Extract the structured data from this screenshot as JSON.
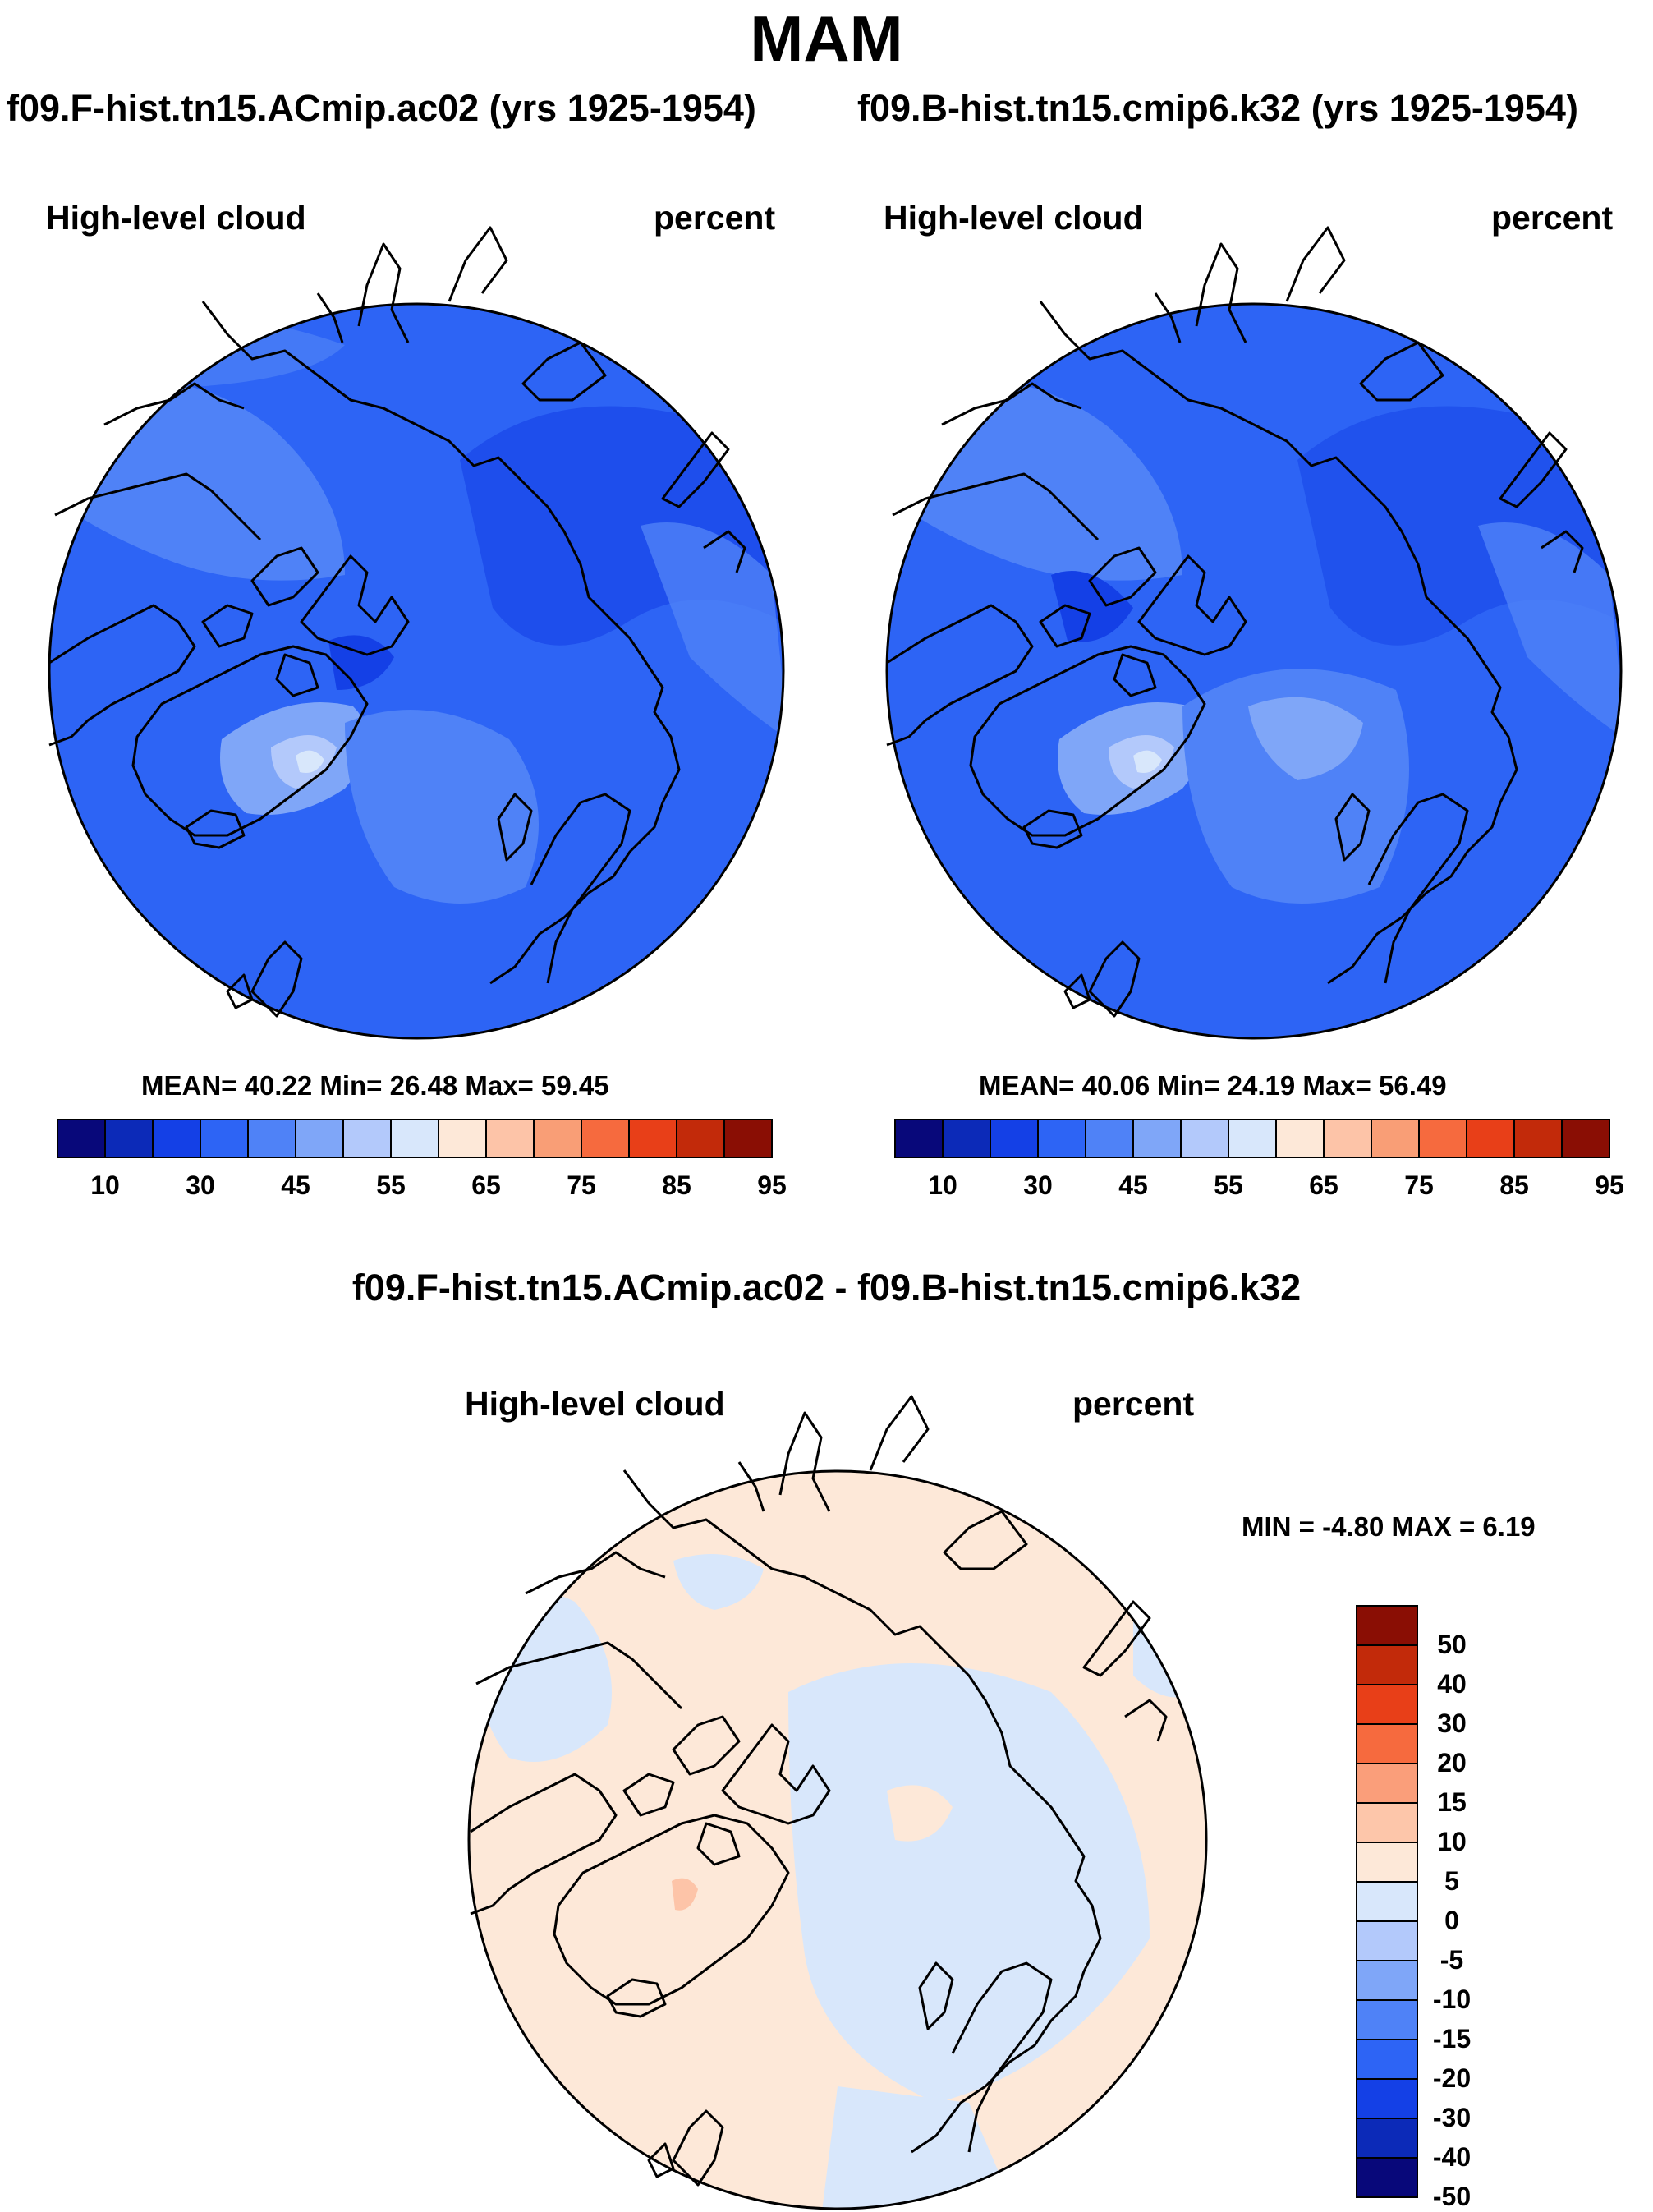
{
  "figure": {
    "season": "MAM"
  },
  "panels": [
    {
      "run_title": "f09.F-hist.tn15.ACmip.ac02 (yrs 1925-1954)",
      "variable": "High-level cloud",
      "units": "percent",
      "stats": "MEAN=  40.22  Min=  26.48  Max=  59.45"
    },
    {
      "run_title": "f09.B-hist.tn15.cmip6.k32 (yrs 1925-1954)",
      "variable": "High-level cloud",
      "units": "percent",
      "stats": "MEAN=  40.06  Min=  24.19  Max=  56.49"
    }
  ],
  "abs_colorbar": {
    "colors": [
      "#08087a",
      "#0c2ab8",
      "#1440e6",
      "#2d64f5",
      "#4f82f7",
      "#7fa6f8",
      "#b3c9fb",
      "#d8e7fb",
      "#fde8d8",
      "#fdc4a8",
      "#f99e76",
      "#f66a3e",
      "#e83f18",
      "#c22a0a",
      "#8a0e04"
    ],
    "tick_labels": [
      "10",
      "30",
      "45",
      "55",
      "65",
      "75",
      "85",
      "95"
    ]
  },
  "difference": {
    "title": "f09.F-hist.tn15.ACmip.ac02 - f09.B-hist.tn15.cmip6.k32",
    "variable": "High-level cloud",
    "units": "percent",
    "stats": "MIN =  -4.80 MAX =   6.19"
  },
  "diff_colorbar": {
    "colors": [
      "#8a0e04",
      "#c22a0a",
      "#e83f18",
      "#f66a3e",
      "#fa9e7a",
      "#fdc6aa",
      "#fde8d8",
      "#d8e7fb",
      "#b3c9fb",
      "#7fa6f8",
      "#4f82f7",
      "#2d64f5",
      "#1440e6",
      "#0c2ab8",
      "#08087a"
    ],
    "tick_labels": [
      "50",
      "40",
      "30",
      "20",
      "15",
      "10",
      "5",
      "0",
      "-5",
      "-10",
      "-15",
      "-20",
      "-30",
      "-40",
      "-50"
    ]
  },
  "map_colors": {
    "ocean_base": "#2d64f5",
    "darker": "#1440e6",
    "lighter": "#4f82f7",
    "light": "#7fa6f8",
    "lightest": "#b3c9fb",
    "palest": "#d8e7fb",
    "diff_pos": "#fde8d8",
    "diff_neg": "#d8e7fb",
    "diff_pos2": "#fdc4a8"
  }
}
